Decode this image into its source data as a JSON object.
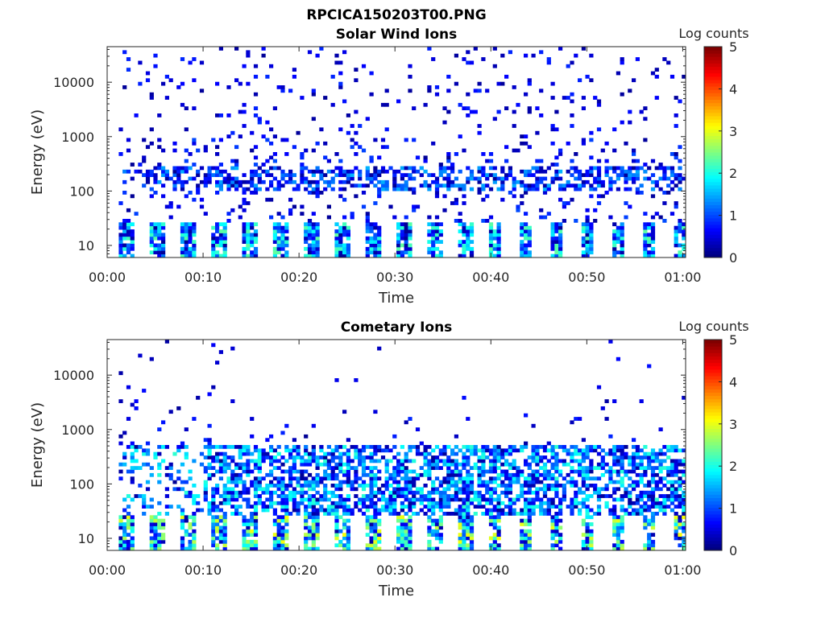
{
  "figure": {
    "title": "RPCICA150203T00.PNG"
  },
  "chart_data": [
    {
      "type": "heatmap",
      "title": "Solar Wind Ions",
      "xlabel": "Time",
      "ylabel": "Energy (eV)",
      "xlim": [
        "00:00",
        "01:00"
      ],
      "ylim": [
        6,
        45000
      ],
      "yscale": "log",
      "xticks": [
        "00:00",
        "00:10",
        "00:20",
        "00:30",
        "00:40",
        "00:50",
        "01:00"
      ],
      "yticks": [
        "10",
        "100",
        "1000",
        "10000"
      ],
      "colorbar": {
        "label": "Log counts",
        "min": 0,
        "max": 5,
        "ticks": [
          "0",
          "1",
          "2",
          "3",
          "4",
          "5"
        ]
      },
      "seed": 17
    },
    {
      "type": "heatmap",
      "title": "Cometary Ions",
      "xlabel": "Time",
      "ylabel": "Energy (eV)",
      "xlim": [
        "00:00",
        "01:00"
      ],
      "ylim": [
        6,
        45000
      ],
      "yscale": "log",
      "xticks": [
        "00:00",
        "00:10",
        "00:20",
        "00:30",
        "00:40",
        "00:50",
        "01:00"
      ],
      "yticks": [
        "10",
        "100",
        "1000",
        "10000"
      ],
      "colorbar": {
        "label": "Log counts",
        "min": 0,
        "max": 5,
        "ticks": [
          "0",
          "1",
          "2",
          "3",
          "4",
          "5"
        ]
      },
      "seed": 91
    }
  ]
}
